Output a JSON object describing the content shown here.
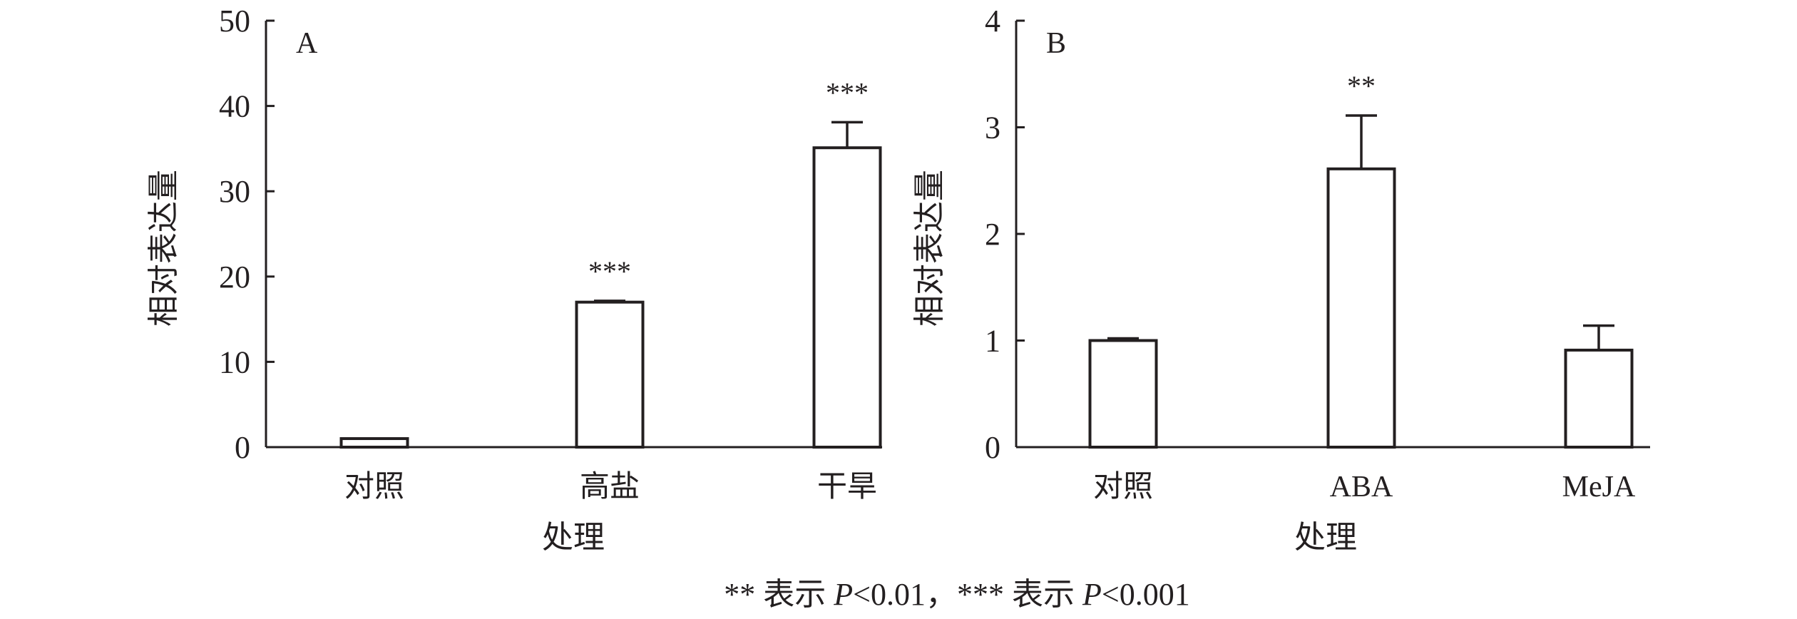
{
  "chart_data": [
    {
      "type": "bar",
      "panel_label": "A",
      "categories": [
        "对照",
        "高盐",
        "干旱"
      ],
      "values": [
        1.0,
        17.0,
        35.1
      ],
      "error": [
        0.0,
        0.15,
        3.0
      ],
      "significance": [
        "",
        "***",
        "***"
      ],
      "xlabel": "处理",
      "ylabel": "相对表达量",
      "ylim": [
        0,
        50
      ],
      "yticks": [
        0,
        10,
        20,
        30,
        40,
        50
      ],
      "grid": false,
      "bar_fill": "#ffffff",
      "bar_stroke": "#231f20"
    },
    {
      "type": "bar",
      "panel_label": "B",
      "categories": [
        "对照",
        "ABA",
        "MeJA"
      ],
      "values": [
        1.0,
        2.61,
        0.91
      ],
      "error": [
        0.02,
        0.5,
        0.23
      ],
      "significance": [
        "",
        "**",
        ""
      ],
      "xlabel": "处理",
      "ylabel": "相对表达量",
      "ylim": [
        0,
        4
      ],
      "yticks": [
        0,
        1,
        2,
        3,
        4
      ],
      "grid": false,
      "bar_fill": "#ffffff",
      "bar_stroke": "#231f20"
    }
  ],
  "footnote": {
    "part1": "** 表示 ",
    "p1": "P",
    "part2": "<0.01，*** 表示 ",
    "p2": "P",
    "part3": "<0.001"
  }
}
